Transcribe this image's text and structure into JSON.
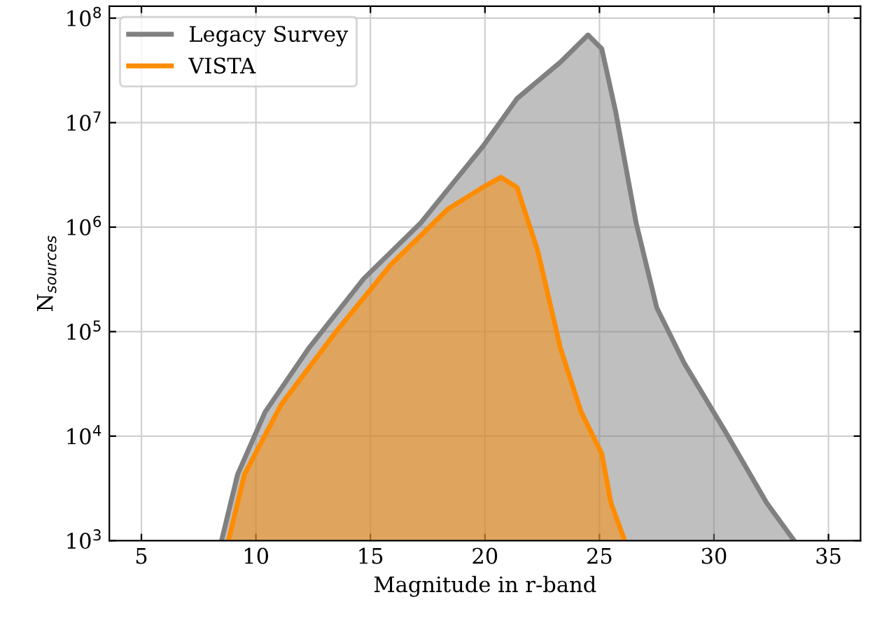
{
  "chart_data": {
    "type": "area",
    "xlabel": "Magnitude in r-band",
    "ylabel": "N$_{sources}$",
    "log": "y",
    "grid": true,
    "legend": "top left",
    "xlim": [
      3.6,
      36.4
    ],
    "ylim": [
      1000,
      130000000
    ],
    "xticks": [
      5,
      10,
      15,
      20,
      25,
      30,
      35
    ],
    "yticks": [
      {
        "value": 1000,
        "label": "10$^{3}$"
      },
      {
        "value": 10000,
        "label": "10$^{4}$"
      },
      {
        "value": 100000,
        "label": "10$^{5}$"
      },
      {
        "value": 1000000,
        "label": "10$^{6}$"
      },
      {
        "value": 10000000,
        "label": "10$^{7}$"
      },
      {
        "value": 100000000,
        "label": "10$^{8}$"
      }
    ],
    "series": [
      {
        "name": "Legacy Survey",
        "color": "#808080",
        "x": [
          8.5,
          9.2,
          10.4,
          12.3,
          14.7,
          17.2,
          18.7,
          19.9,
          21.4,
          23.3,
          24.5,
          25.1,
          25.7,
          26.6,
          27.5,
          28.7,
          30.5,
          32.3,
          33.5
        ],
        "values": [
          1000,
          4300,
          17000,
          69000,
          320000,
          1100000,
          2800000,
          5900000,
          17000000,
          38000000,
          69000000,
          51000000,
          13000000,
          1100000,
          170000,
          50000,
          11000,
          2300,
          1000
        ]
      },
      {
        "name": "VISTA",
        "color": "#ff8c00",
        "x": [
          8.8,
          9.5,
          11.1,
          13.5,
          15.9,
          18.4,
          19.9,
          20.7,
          21.4,
          22.3,
          23.3,
          24.2,
          25.1,
          25.5,
          26.1
        ],
        "values": [
          1000,
          4300,
          20000,
          100000,
          440000,
          1500000,
          2400000,
          3000000,
          2400000,
          600000,
          69000,
          17000,
          6800,
          2300,
          1000
        ]
      }
    ]
  }
}
